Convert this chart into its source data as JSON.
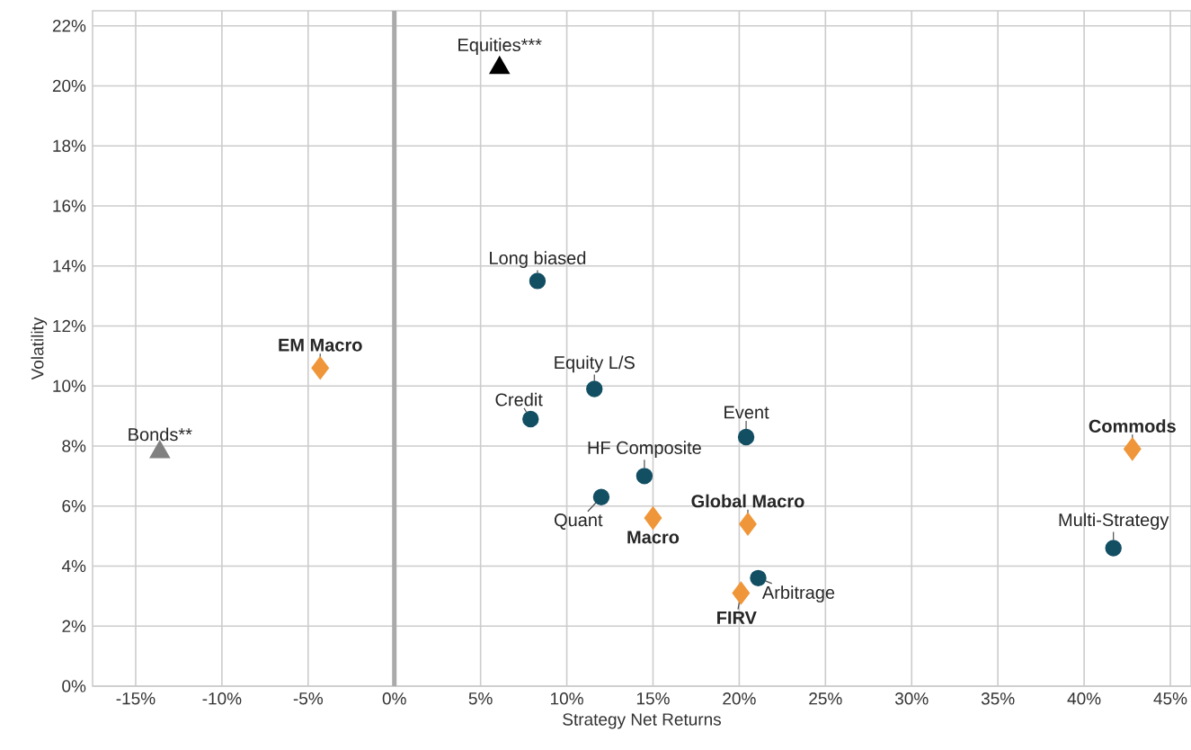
{
  "chart_data": {
    "type": "scatter",
    "xlabel": "Strategy Net Returns",
    "ylabel": "Volatility",
    "xlim": [
      -17.5,
      46.2
    ],
    "ylim": [
      0,
      22.5
    ],
    "xticks": [
      {
        "value": -15,
        "label": "-15%"
      },
      {
        "value": -10,
        "label": "-10%"
      },
      {
        "value": -5,
        "label": "-5%"
      },
      {
        "value": 0,
        "label": "0%"
      },
      {
        "value": 5,
        "label": "5%"
      },
      {
        "value": 10,
        "label": "10%"
      },
      {
        "value": 15,
        "label": "15%"
      },
      {
        "value": 20,
        "label": "20%"
      },
      {
        "value": 25,
        "label": "25%"
      },
      {
        "value": 30,
        "label": "30%"
      },
      {
        "value": 35,
        "label": "35%"
      },
      {
        "value": 40,
        "label": "40%"
      },
      {
        "value": 45,
        "label": "45%"
      }
    ],
    "yticks": [
      {
        "value": 0,
        "label": "0%"
      },
      {
        "value": 2,
        "label": "2%"
      },
      {
        "value": 4,
        "label": "4%"
      },
      {
        "value": 6,
        "label": "6%"
      },
      {
        "value": 8,
        "label": "8%"
      },
      {
        "value": 10,
        "label": "10%"
      },
      {
        "value": 12,
        "label": "12%"
      },
      {
        "value": 14,
        "label": "14%"
      },
      {
        "value": 16,
        "label": "16%"
      },
      {
        "value": 18,
        "label": "18%"
      },
      {
        "value": 20,
        "label": "20%"
      },
      {
        "value": 22,
        "label": "22%"
      }
    ],
    "grid": true,
    "ref_lines": [
      {
        "axis": "x",
        "value": 0,
        "color": "#aaaaaa"
      }
    ],
    "series": [
      {
        "color": "#134f63",
        "marker": "circle",
        "x": [
          8.3,
          11.6,
          7.9,
          20.4,
          14.5,
          12.0,
          41.7,
          21.1
        ],
        "values": [
          13.5,
          9.9,
          8.9,
          8.3,
          7.0,
          6.3,
          4.6,
          3.6
        ]
      },
      {
        "color": "#f0963a",
        "marker": "diamond",
        "x": [
          -4.3,
          20.5,
          42.8,
          20.1
        ],
        "values": [
          10.6,
          5.4,
          7.9,
          3.1
        ]
      },
      {
        "color": "#f0963a",
        "marker": "diamond",
        "x": [
          15.0
        ],
        "values": [
          5.6
        ]
      },
      {
        "color": "#000000",
        "marker": "triangle",
        "x": [
          6.1
        ],
        "values": [
          20.6
        ]
      },
      {
        "color": "#808080",
        "marker": "triangle",
        "x": [
          -13.6
        ],
        "values": [
          7.8
        ]
      }
    ],
    "annotations": [
      {
        "text": "Equities***",
        "x": 6.1,
        "y": 20.6
      },
      {
        "text": "Bonds**",
        "x": -13.6,
        "y": 7.8
      },
      {
        "text": "Long biased",
        "x": 8.3,
        "y": 13.5
      },
      {
        "text": "**EM Macro**",
        "x": -4.3,
        "y": 10.6
      },
      {
        "text": "Equity L/S",
        "x": 11.6,
        "y": 9.9
      },
      {
        "text": "Credit",
        "x": 7.9,
        "y": 8.9
      },
      {
        "text": "Event",
        "x": 20.4,
        "y": 8.3
      },
      {
        "text": "HF Composite",
        "x": 14.5,
        "y": 7.0
      },
      {
        "text": "Quant",
        "x": 12.0,
        "y": 6.3
      },
      {
        "text": "**Macro**",
        "x": 15.0,
        "y": 5.6
      },
      {
        "text": "**Global Macro**",
        "x": 20.5,
        "y": 5.4
      },
      {
        "text": "**Commods**",
        "x": 42.8,
        "y": 7.9
      },
      {
        "text": "Multi-Strategy",
        "x": 41.7,
        "y": 4.6
      },
      {
        "text": "**FIRV**",
        "x": 20.1,
        "y": 3.1
      },
      {
        "text": "Arbitrage",
        "x": 21.1,
        "y": 3.6
      }
    ]
  }
}
